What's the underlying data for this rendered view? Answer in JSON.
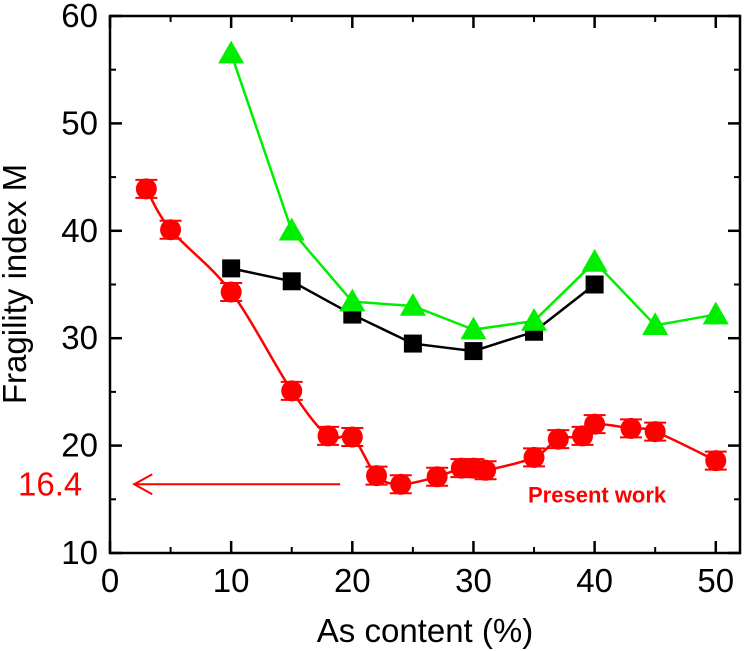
{
  "chart_data": {
    "type": "line",
    "xlabel": "As content (%)",
    "ylabel": "Fragility index M",
    "xlim": [
      0,
      52
    ],
    "ylim": [
      10,
      60
    ],
    "xticks": [
      0,
      10,
      20,
      30,
      40,
      50
    ],
    "yticks": [
      10,
      20,
      30,
      40,
      50,
      60
    ],
    "xtick_labels": [
      "0",
      "10",
      "20",
      "30",
      "40",
      "50"
    ],
    "ytick_labels": [
      "10",
      "20",
      "30",
      "40",
      "50",
      "60"
    ],
    "grid": false,
    "series": [
      {
        "marker": "circle",
        "color": "#ff0000",
        "error_bars": true,
        "x": [
          3,
          5,
          10,
          15,
          18,
          20,
          22,
          24,
          27,
          29,
          30,
          31,
          35,
          37,
          39,
          40,
          43,
          45,
          50
        ],
        "y": [
          43.9,
          40.1,
          34.3,
          25.1,
          20.9,
          20.8,
          17.2,
          16.4,
          17.1,
          17.9,
          17.9,
          17.7,
          18.9,
          20.6,
          20.9,
          22.0,
          21.6,
          21.3,
          18.6
        ]
      },
      {
        "marker": "square",
        "color": "#000000",
        "error_bars": false,
        "x": [
          10,
          15,
          20,
          25,
          30,
          35,
          40
        ],
        "y": [
          36.5,
          35.3,
          32.2,
          29.5,
          28.8,
          30.6,
          35.0
        ]
      },
      {
        "marker": "triangle",
        "color": "#00ee00",
        "error_bars": false,
        "x": [
          10,
          15,
          20,
          25,
          30,
          35,
          40,
          45,
          50
        ],
        "y": [
          56.5,
          40.0,
          33.4,
          33.0,
          30.8,
          31.6,
          37.1,
          31.2,
          32.2
        ]
      }
    ],
    "annotations": {
      "value_label": "16.4",
      "value": 16.4,
      "arrow_from_x": 19,
      "arrow_to_x": 2,
      "text": "Present work",
      "color": "#ff0000"
    }
  }
}
